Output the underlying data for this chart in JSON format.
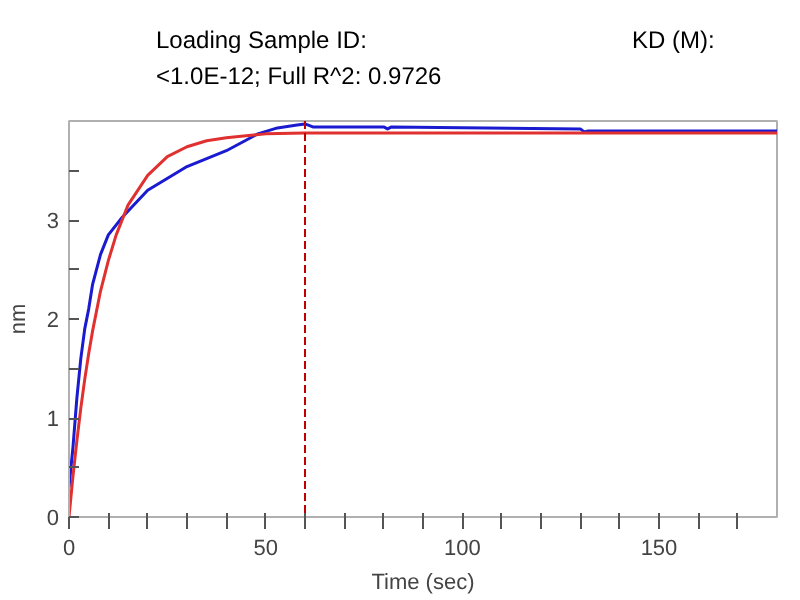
{
  "chart_data": {
    "type": "line",
    "title": "Loading Sample ID:",
    "annotations": [
      "KD (M):",
      "<1.0E-12; Full R^2: 0.9726"
    ],
    "xlabel": "Time (sec)",
    "ylabel": "nm",
    "xlim": [
      0,
      180
    ],
    "ylim": [
      0,
      4
    ],
    "xticks": [
      0,
      {
        "value": 10,
        "label": null
      },
      {
        "value": 20,
        "label": null
      },
      {
        "value": 30,
        "label": null
      },
      {
        "value": 40,
        "label": null
      },
      50,
      {
        "value": 60,
        "label": null
      },
      {
        "value": 70,
        "label": null
      },
      {
        "value": 80,
        "label": null
      },
      {
        "value": 90,
        "label": null
      },
      100,
      {
        "value": 110,
        "label": null
      },
      {
        "value": 120,
        "label": null
      },
      {
        "value": 130,
        "label": null
      },
      {
        "value": 140,
        "label": null
      },
      150,
      {
        "value": 160,
        "label": null
      },
      {
        "value": 170,
        "label": null
      }
    ],
    "yticks": [
      0,
      {
        "value": 0.5,
        "label": null
      },
      1,
      {
        "value": 1.5,
        "label": null
      },
      2,
      {
        "value": 2.5,
        "label": null
      },
      3,
      {
        "value": 3.5,
        "label": null
      }
    ],
    "grid": false,
    "series": [
      {
        "color": "#1a1ad0",
        "x": [
          0,
          1,
          2,
          3,
          4,
          5,
          6,
          8,
          10,
          13.6,
          20,
          30,
          40,
          48,
          53,
          58,
          60,
          62,
          80,
          81,
          82,
          130,
          131,
          132,
          180
        ],
        "values": [
          0.3,
          0.7,
          1.2,
          1.6,
          1.9,
          2.1,
          2.35,
          2.65,
          2.85,
          3.03,
          3.3,
          3.54,
          3.7,
          3.87,
          3.93,
          3.96,
          3.97,
          3.94,
          3.94,
          3.92,
          3.94,
          3.92,
          3.89,
          3.9,
          3.9
        ]
      },
      {
        "color": "#e03030",
        "x": [
          0,
          1,
          2,
          3,
          4,
          5,
          6,
          8,
          10,
          12,
          15,
          20,
          25,
          30,
          35,
          40,
          50,
          60,
          180
        ],
        "values": [
          0,
          0.41,
          0.77,
          1.1,
          1.39,
          1.65,
          1.88,
          2.28,
          2.59,
          2.85,
          3.15,
          3.45,
          3.64,
          3.74,
          3.8,
          3.83,
          3.87,
          3.88,
          3.88
        ]
      }
    ],
    "ref_lines": [
      {
        "axis": "x",
        "value": 60,
        "color": "#c00000",
        "line_style": "dashed"
      }
    ]
  }
}
